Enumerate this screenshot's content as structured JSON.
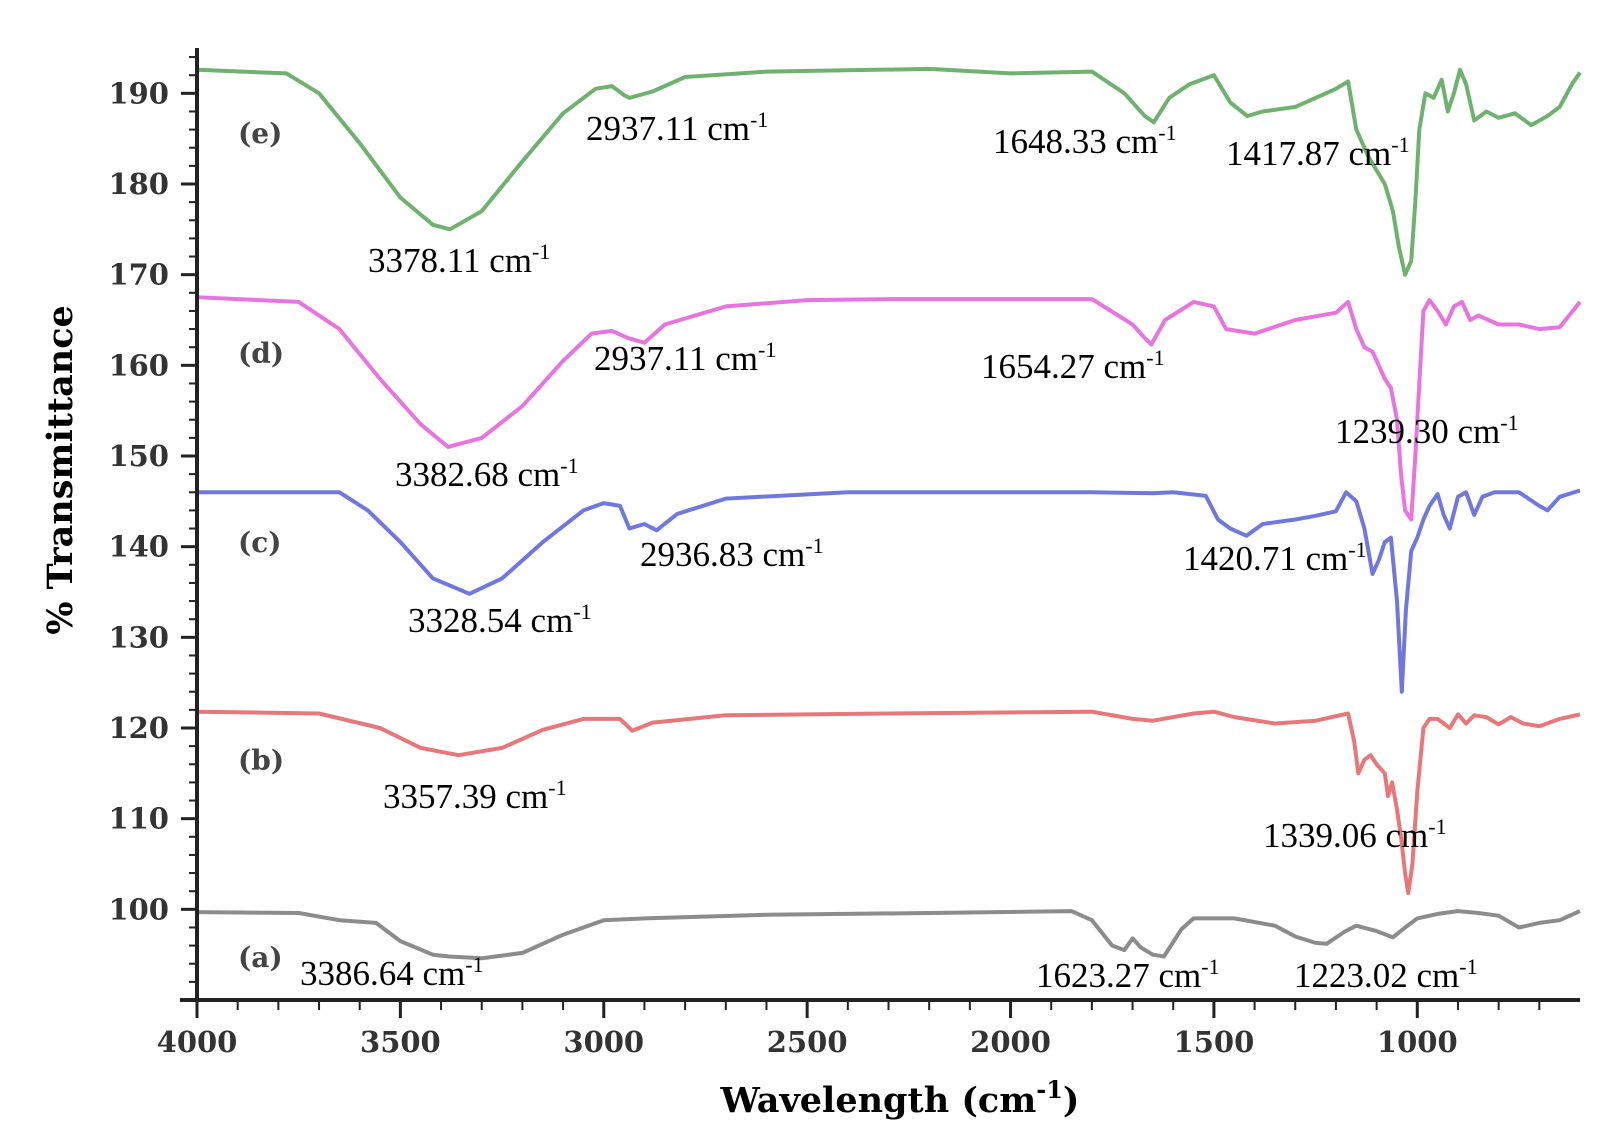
{
  "chart_data": {
    "type": "line",
    "xlabel": "Wavelength (cm-1)",
    "ylabel": "% Transmittance",
    "xlim": [
      4000,
      600
    ],
    "ylim": [
      90,
      195
    ],
    "x_reversed": true,
    "x_ticks": [
      4000,
      3500,
      3000,
      2500,
      2000,
      1500,
      1000
    ],
    "y_ticks": [
      100,
      110,
      120,
      130,
      140,
      150,
      160,
      170,
      180,
      190
    ],
    "grid": false,
    "series": [
      {
        "name": "(a)",
        "color": "#8c8c8c",
        "points": [
          [
            4000,
            99.7
          ],
          [
            3750,
            99.6
          ],
          [
            3650,
            98.8
          ],
          [
            3560,
            98.5
          ],
          [
            3500,
            96.5
          ],
          [
            3420,
            95.0
          ],
          [
            3380,
            94.8
          ],
          [
            3300,
            94.6
          ],
          [
            3200,
            95.2
          ],
          [
            3100,
            97.2
          ],
          [
            3000,
            98.8
          ],
          [
            2900,
            99.0
          ],
          [
            2600,
            99.4
          ],
          [
            2200,
            99.6
          ],
          [
            1850,
            99.8
          ],
          [
            1800,
            98.8
          ],
          [
            1750,
            96.0
          ],
          [
            1720,
            95.5
          ],
          [
            1700,
            96.8
          ],
          [
            1680,
            95.8
          ],
          [
            1650,
            95.0
          ],
          [
            1623,
            94.8
          ],
          [
            1580,
            97.8
          ],
          [
            1550,
            99.0
          ],
          [
            1450,
            99.0
          ],
          [
            1350,
            98.2
          ],
          [
            1300,
            97.0
          ],
          [
            1250,
            96.3
          ],
          [
            1223,
            96.2
          ],
          [
            1180,
            97.5
          ],
          [
            1150,
            98.2
          ],
          [
            1100,
            97.6
          ],
          [
            1060,
            96.9
          ],
          [
            1030,
            98.0
          ],
          [
            1000,
            99.0
          ],
          [
            950,
            99.5
          ],
          [
            900,
            99.8
          ],
          [
            850,
            99.6
          ],
          [
            800,
            99.3
          ],
          [
            750,
            98.0
          ],
          [
            700,
            98.5
          ],
          [
            650,
            98.8
          ],
          [
            600,
            99.8
          ]
        ]
      },
      {
        "name": "(b)",
        "color": "#e8777a",
        "points": [
          [
            4000,
            121.8
          ],
          [
            3700,
            121.6
          ],
          [
            3550,
            120.0
          ],
          [
            3450,
            117.8
          ],
          [
            3357,
            117.0
          ],
          [
            3250,
            117.8
          ],
          [
            3150,
            119.8
          ],
          [
            3050,
            121.0
          ],
          [
            2960,
            121.0
          ],
          [
            2930,
            119.7
          ],
          [
            2880,
            120.6
          ],
          [
            2700,
            121.4
          ],
          [
            2300,
            121.6
          ],
          [
            1800,
            121.8
          ],
          [
            1700,
            121.0
          ],
          [
            1650,
            120.8
          ],
          [
            1550,
            121.6
          ],
          [
            1500,
            121.8
          ],
          [
            1450,
            121.2
          ],
          [
            1350,
            120.5
          ],
          [
            1250,
            120.8
          ],
          [
            1170,
            121.6
          ],
          [
            1155,
            118.5
          ],
          [
            1145,
            115.0
          ],
          [
            1130,
            116.5
          ],
          [
            1115,
            117.0
          ],
          [
            1100,
            116.0
          ],
          [
            1080,
            115.0
          ],
          [
            1072,
            112.5
          ],
          [
            1062,
            114.0
          ],
          [
            1050,
            111.0
          ],
          [
            1040,
            108.0
          ],
          [
            1030,
            104.0
          ],
          [
            1022,
            101.8
          ],
          [
            1012,
            105.0
          ],
          [
            1000,
            113.0
          ],
          [
            985,
            120.0
          ],
          [
            970,
            121.0
          ],
          [
            950,
            121.0
          ],
          [
            920,
            120.0
          ],
          [
            900,
            121.5
          ],
          [
            880,
            120.5
          ],
          [
            860,
            121.4
          ],
          [
            830,
            121.2
          ],
          [
            800,
            120.4
          ],
          [
            770,
            121.2
          ],
          [
            740,
            120.5
          ],
          [
            700,
            120.2
          ],
          [
            650,
            121.0
          ],
          [
            600,
            121.5
          ]
        ]
      },
      {
        "name": "(c)",
        "color": "#7078e0",
        "points": [
          [
            4000,
            146.0
          ],
          [
            3650,
            146.0
          ],
          [
            3580,
            144.0
          ],
          [
            3500,
            140.5
          ],
          [
            3420,
            136.5
          ],
          [
            3330,
            134.8
          ],
          [
            3250,
            136.5
          ],
          [
            3150,
            140.5
          ],
          [
            3050,
            144.0
          ],
          [
            3000,
            144.8
          ],
          [
            2960,
            144.5
          ],
          [
            2937,
            142.0
          ],
          [
            2900,
            142.5
          ],
          [
            2870,
            141.8
          ],
          [
            2820,
            143.6
          ],
          [
            2700,
            145.3
          ],
          [
            2400,
            146.0
          ],
          [
            1800,
            146.0
          ],
          [
            1650,
            145.9
          ],
          [
            1600,
            146.0
          ],
          [
            1520,
            145.6
          ],
          [
            1490,
            143.0
          ],
          [
            1460,
            142.0
          ],
          [
            1420,
            141.2
          ],
          [
            1380,
            142.5
          ],
          [
            1300,
            143.0
          ],
          [
            1250,
            143.4
          ],
          [
            1200,
            143.9
          ],
          [
            1175,
            146.0
          ],
          [
            1150,
            145.0
          ],
          [
            1130,
            142.0
          ],
          [
            1110,
            137.0
          ],
          [
            1095,
            138.5
          ],
          [
            1080,
            140.5
          ],
          [
            1065,
            141.0
          ],
          [
            1050,
            134.0
          ],
          [
            1038,
            124.0
          ],
          [
            1028,
            133.0
          ],
          [
            1015,
            139.5
          ],
          [
            1000,
            141.0
          ],
          [
            985,
            143.0
          ],
          [
            970,
            144.5
          ],
          [
            950,
            145.8
          ],
          [
            935,
            143.5
          ],
          [
            920,
            142.0
          ],
          [
            900,
            145.5
          ],
          [
            880,
            146.0
          ],
          [
            860,
            143.5
          ],
          [
            840,
            145.5
          ],
          [
            810,
            146.0
          ],
          [
            750,
            146.0
          ],
          [
            700,
            144.5
          ],
          [
            680,
            144.0
          ],
          [
            650,
            145.5
          ],
          [
            600,
            146.2
          ]
        ]
      },
      {
        "name": "(d)",
        "color": "#e874e0",
        "points": [
          [
            4000,
            167.5
          ],
          [
            3750,
            167.0
          ],
          [
            3650,
            164.0
          ],
          [
            3550,
            158.5
          ],
          [
            3450,
            153.5
          ],
          [
            3383,
            151.0
          ],
          [
            3300,
            152.0
          ],
          [
            3200,
            155.5
          ],
          [
            3100,
            160.5
          ],
          [
            3030,
            163.5
          ],
          [
            2980,
            163.8
          ],
          [
            2940,
            163.0
          ],
          [
            2900,
            162.5
          ],
          [
            2850,
            164.5
          ],
          [
            2700,
            166.5
          ],
          [
            2500,
            167.2
          ],
          [
            2300,
            167.3
          ],
          [
            1800,
            167.3
          ],
          [
            1700,
            164.5
          ],
          [
            1670,
            163.0
          ],
          [
            1654,
            162.3
          ],
          [
            1620,
            165.0
          ],
          [
            1550,
            167.0
          ],
          [
            1500,
            166.5
          ],
          [
            1470,
            164.0
          ],
          [
            1400,
            163.5
          ],
          [
            1300,
            165.0
          ],
          [
            1200,
            165.8
          ],
          [
            1170,
            167.0
          ],
          [
            1150,
            164.0
          ],
          [
            1130,
            162.0
          ],
          [
            1110,
            161.5
          ],
          [
            1095,
            160.0
          ],
          [
            1080,
            158.5
          ],
          [
            1065,
            157.5
          ],
          [
            1050,
            154.0
          ],
          [
            1040,
            148.0
          ],
          [
            1030,
            144.0
          ],
          [
            1015,
            143.0
          ],
          [
            1005,
            150.0
          ],
          [
            995,
            158.0
          ],
          [
            985,
            166.0
          ],
          [
            970,
            167.2
          ],
          [
            950,
            166.0
          ],
          [
            930,
            164.5
          ],
          [
            910,
            166.5
          ],
          [
            890,
            167.0
          ],
          [
            870,
            165.0
          ],
          [
            850,
            165.5
          ],
          [
            800,
            164.5
          ],
          [
            750,
            164.5
          ],
          [
            700,
            164.0
          ],
          [
            650,
            164.2
          ],
          [
            600,
            167.0
          ]
        ]
      },
      {
        "name": "(e)",
        "color": "#6fb26f",
        "points": [
          [
            4000,
            192.6
          ],
          [
            3780,
            192.2
          ],
          [
            3700,
            190.0
          ],
          [
            3600,
            184.5
          ],
          [
            3500,
            178.5
          ],
          [
            3420,
            175.5
          ],
          [
            3378,
            175.0
          ],
          [
            3300,
            177.0
          ],
          [
            3200,
            182.5
          ],
          [
            3100,
            187.8
          ],
          [
            3020,
            190.5
          ],
          [
            2980,
            190.8
          ],
          [
            2950,
            189.8
          ],
          [
            2937,
            189.5
          ],
          [
            2880,
            190.2
          ],
          [
            2800,
            191.8
          ],
          [
            2600,
            192.4
          ],
          [
            2200,
            192.7
          ],
          [
            2000,
            192.2
          ],
          [
            1800,
            192.4
          ],
          [
            1720,
            190.0
          ],
          [
            1670,
            187.5
          ],
          [
            1648,
            186.8
          ],
          [
            1610,
            189.5
          ],
          [
            1560,
            191.0
          ],
          [
            1500,
            192.0
          ],
          [
            1460,
            189.0
          ],
          [
            1418,
            187.5
          ],
          [
            1380,
            188.0
          ],
          [
            1300,
            188.5
          ],
          [
            1250,
            189.5
          ],
          [
            1200,
            190.5
          ],
          [
            1170,
            191.3
          ],
          [
            1150,
            186.0
          ],
          [
            1120,
            183.0
          ],
          [
            1100,
            181.5
          ],
          [
            1080,
            180.0
          ],
          [
            1060,
            177.0
          ],
          [
            1045,
            173.0
          ],
          [
            1030,
            170.0
          ],
          [
            1015,
            171.5
          ],
          [
            1005,
            178.0
          ],
          [
            995,
            186.0
          ],
          [
            980,
            190.0
          ],
          [
            960,
            189.5
          ],
          [
            940,
            191.5
          ],
          [
            925,
            188.0
          ],
          [
            910,
            190.0
          ],
          [
            895,
            192.6
          ],
          [
            880,
            191.0
          ],
          [
            860,
            187.0
          ],
          [
            830,
            188.0
          ],
          [
            800,
            187.3
          ],
          [
            760,
            187.8
          ],
          [
            720,
            186.5
          ],
          [
            680,
            187.5
          ],
          [
            650,
            188.5
          ],
          [
            620,
            191.0
          ],
          [
            600,
            192.3
          ]
        ]
      }
    ],
    "annotations": [
      {
        "label": "(e)",
        "type": "series-tag"
      },
      {
        "label": "(d)",
        "type": "series-tag"
      },
      {
        "label": "(c)",
        "type": "series-tag"
      },
      {
        "label": "(b)",
        "type": "series-tag"
      },
      {
        "label": "(a)",
        "type": "series-tag"
      },
      {
        "value": "3378.11",
        "unit": "cm",
        "sup": "-1"
      },
      {
        "value": "2937.11",
        "unit": "cm",
        "sup": "-1"
      },
      {
        "value": "1648.33",
        "unit": "cm",
        "sup": "-1"
      },
      {
        "value": "1417.87",
        "unit": "cm",
        "sup": "-1"
      },
      {
        "value": "3382.68",
        "unit": "cm",
        "sup": "-1"
      },
      {
        "value": "2937.11",
        "unit": "cm",
        "sup": "-1"
      },
      {
        "value": "1654.27",
        "unit": "cm",
        "sup": "-1"
      },
      {
        "value": "1239.30",
        "unit": "cm",
        "sup": "-1"
      },
      {
        "value": "3328.54",
        "unit": "cm",
        "sup": "-1"
      },
      {
        "value": "2936.83",
        "unit": "cm",
        "sup": "-1"
      },
      {
        "value": "1420.71",
        "unit": "cm",
        "sup": "-1"
      },
      {
        "value": "3357.39",
        "unit": "cm",
        "sup": "-1"
      },
      {
        "value": "1339.06",
        "unit": "cm",
        "sup": "-1"
      },
      {
        "value": "3386.64",
        "unit": "cm",
        "sup": "-1"
      },
      {
        "value": "1623.27",
        "unit": "cm",
        "sup": "-1"
      },
      {
        "value": "1223.02",
        "unit": "cm",
        "sup": "-1"
      }
    ]
  },
  "axis_title_text": {
    "x_main": "Wavelength (cm",
    "x_sup": "-1",
    "x_close": ")",
    "y_main": "% Transmittance"
  }
}
